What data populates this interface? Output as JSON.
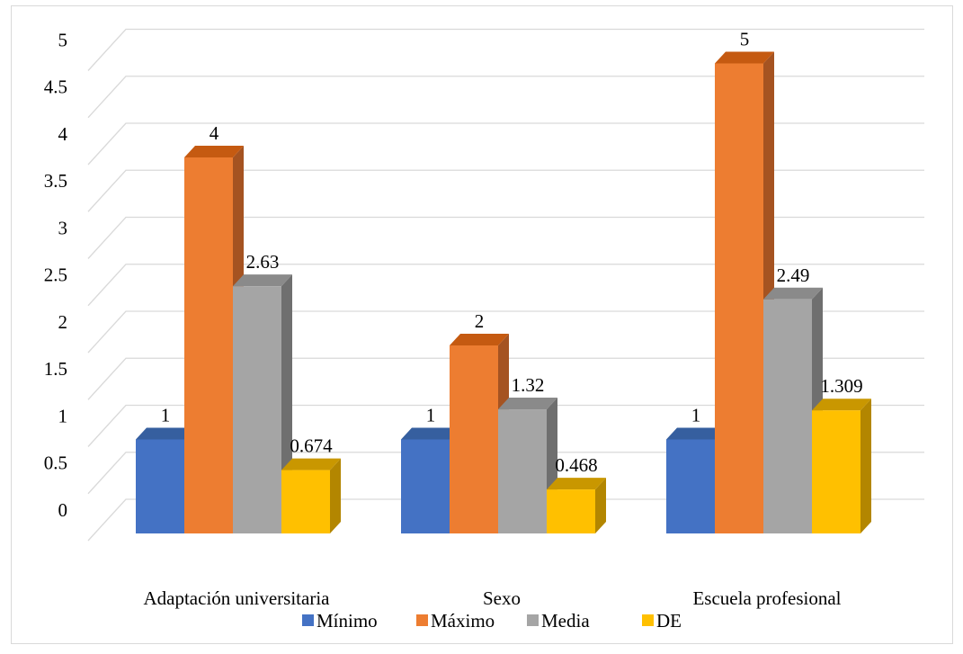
{
  "chart_data": {
    "type": "bar",
    "style": "3d-clustered-column",
    "categories": [
      "Adaptación universitaria",
      "Sexo",
      "Escuela profesional"
    ],
    "series": [
      {
        "name": "Mínimo",
        "values": [
          1,
          1,
          1
        ],
        "labels": [
          "1",
          "1",
          "1"
        ]
      },
      {
        "name": "Máximo",
        "values": [
          4,
          2,
          5
        ],
        "labels": [
          "4",
          "2",
          "5"
        ]
      },
      {
        "name": "Media",
        "values": [
          2.63,
          1.32,
          2.49
        ],
        "labels": [
          "2.63",
          "1.32",
          "2.49"
        ]
      },
      {
        "name": "DE",
        "values": [
          0.674,
          0.468,
          1.309
        ],
        "labels": [
          "0.674",
          "0.468",
          "1.309"
        ]
      }
    ],
    "y_ticks": [
      "0",
      "0.5",
      "1",
      "1.5",
      "2",
      "2.5",
      "3",
      "3.5",
      "4",
      "4.5",
      "5"
    ],
    "ylim": [
      0,
      5
    ],
    "grid": true,
    "legend_position": "bottom",
    "colors": {
      "Mínimo": {
        "front": "#4472c4",
        "side": "#2f5597",
        "top": "#365f9f"
      },
      "Máximo": {
        "front": "#ed7d31",
        "side": "#a55321",
        "top": "#c55a11"
      },
      "Media": {
        "front": "#a5a5a5",
        "side": "#6f6f6f",
        "top": "#8a8a8a"
      },
      "DE": {
        "front": "#ffc000",
        "side": "#b38600",
        "top": "#c99700"
      }
    },
    "gridline_color": "#d9d9d9"
  }
}
